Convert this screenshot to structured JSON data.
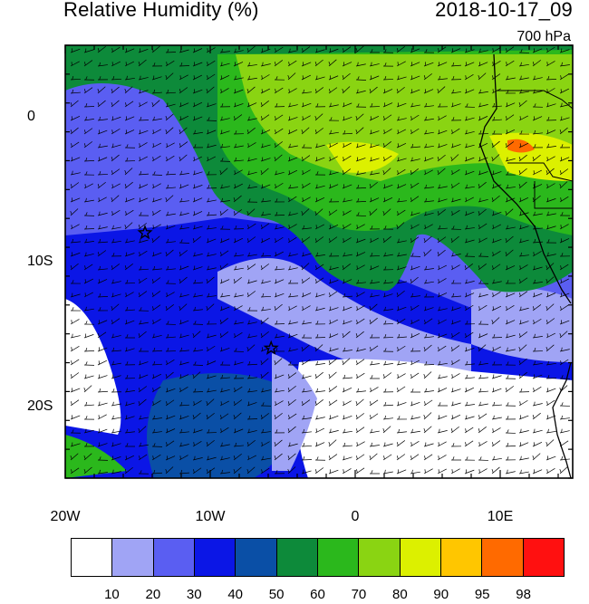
{
  "title": "Relative Humidity (%)",
  "datetime": "2018-10-17_09",
  "level": "700 hPa",
  "axes": {
    "y_ticks": [
      {
        "label": "0",
        "lat": 0
      },
      {
        "label": "10S",
        "lat": -10
      },
      {
        "label": "20S",
        "lat": -20
      }
    ],
    "x_ticks": [
      {
        "label": "20W",
        "lon": -20
      },
      {
        "label": "10W",
        "lon": -10
      },
      {
        "label": "0",
        "lon": 0
      },
      {
        "label": "10E",
        "lon": 10
      }
    ],
    "lon_range": [
      -20,
      15
    ],
    "lat_range": [
      -25,
      5
    ]
  },
  "colorbar": {
    "colors": [
      "#ffffff",
      "#a0a4f5",
      "#5a5ef2",
      "#0b16e6",
      "#0a4fa6",
      "#0d8a3a",
      "#2bb81c",
      "#8ad412",
      "#dcf000",
      "#ffc600",
      "#ff6a00",
      "#ff1010"
    ],
    "labels": [
      "10",
      "20",
      "30",
      "40",
      "50",
      "60",
      "70",
      "80",
      "90",
      "95",
      "98"
    ]
  },
  "markers": [
    {
      "name": "star-marker",
      "lon": -14.5,
      "lat": -8
    },
    {
      "name": "star-marker",
      "lon": -5.8,
      "lat": -16
    }
  ]
}
